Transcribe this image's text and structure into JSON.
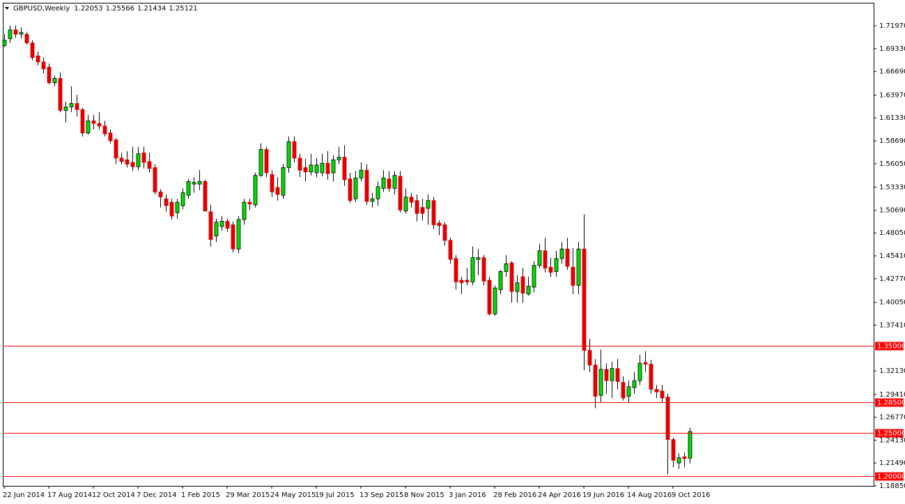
{
  "chart_data": {
    "type": "candlestick",
    "symbol": "GBPUSD,Weekly",
    "up_color": "#00dd00",
    "down_color": "#e00000",
    "wick_color": "#000000",
    "level_color": "#ff0000",
    "categories": [
      "22 Jun 2014",
      null,
      null,
      null,
      null,
      null,
      null,
      null,
      "17 Aug 2014",
      null,
      null,
      null,
      null,
      null,
      null,
      null,
      "12 Oct 2014",
      null,
      null,
      null,
      null,
      null,
      null,
      null,
      "7 Dec 2014",
      null,
      null,
      null,
      null,
      null,
      null,
      null,
      "1 Feb 2015",
      null,
      null,
      null,
      null,
      null,
      null,
      null,
      "29 Mar 2015",
      null,
      null,
      null,
      null,
      null,
      null,
      null,
      "24 May 2015",
      null,
      null,
      null,
      null,
      null,
      null,
      null,
      "19 Jul 2015",
      null,
      null,
      null,
      null,
      null,
      null,
      null,
      "13 Sep 2015",
      null,
      null,
      null,
      null,
      null,
      null,
      null,
      "8 Nov 2015",
      null,
      null,
      null,
      null,
      null,
      null,
      null,
      "3 Jan 2016",
      null,
      null,
      null,
      null,
      null,
      null,
      null,
      "28 Feb 2016",
      null,
      null,
      null,
      null,
      null,
      null,
      null,
      "24 Apr 2016",
      null,
      null,
      null,
      null,
      null,
      null,
      null,
      "19 Jun 2016",
      null,
      null,
      null,
      null,
      null,
      null,
      null,
      "14 Aug 2016",
      null,
      null,
      null,
      null,
      null,
      null,
      null,
      "9 Oct 2016",
      null,
      null,
      null
    ],
    "open": [
      1.697,
      1.705,
      1.715,
      1.71,
      1.71,
      1.7,
      1.685,
      1.678,
      1.672,
      1.654,
      1.659,
      1.622,
      1.626,
      1.63,
      1.623,
      1.596,
      1.61,
      1.607,
      1.604,
      1.596,
      1.588,
      1.567,
      1.565,
      1.562,
      1.557,
      1.573,
      1.563,
      1.556,
      1.528,
      1.52,
      1.516,
      1.504,
      1.512,
      1.524,
      1.537,
      1.537,
      1.54,
      1.505,
      1.477,
      1.488,
      1.494,
      1.49,
      1.462,
      1.496,
      1.516,
      1.513,
      1.547,
      1.577,
      1.548,
      1.533,
      1.524,
      1.556,
      1.586,
      1.567,
      1.556,
      1.551,
      1.55,
      1.55,
      1.561,
      1.55,
      1.565,
      1.568,
      1.543,
      1.52,
      1.544,
      1.553,
      1.517,
      1.52,
      1.532,
      1.543,
      1.532,
      1.546,
      1.506,
      1.522,
      1.518,
      1.51,
      1.509,
      1.518,
      1.492,
      1.49,
      1.472,
      1.451,
      1.426,
      1.426,
      1.424,
      1.45,
      1.452,
      1.426,
      1.387,
      1.415,
      1.436,
      1.446,
      1.413,
      1.43,
      1.41,
      1.418,
      1.443,
      1.46,
      1.441,
      1.436,
      1.451,
      1.462,
      1.441,
      1.42,
      1.462,
      1.345,
      1.328,
      1.293,
      1.323,
      1.31,
      1.324,
      1.308,
      1.292,
      1.302,
      1.31,
      1.331,
      1.329,
      1.3,
      1.298,
      1.291,
      1.242,
      1.215,
      1.222,
      1.22053
    ],
    "high": [
      1.71,
      1.72,
      1.72,
      1.718,
      1.712,
      1.703,
      1.69,
      1.683,
      1.676,
      1.662,
      1.666,
      1.632,
      1.65,
      1.64,
      1.625,
      1.617,
      1.617,
      1.62,
      1.61,
      1.6,
      1.59,
      1.573,
      1.575,
      1.58,
      1.58,
      1.58,
      1.573,
      1.56,
      1.531,
      1.525,
      1.52,
      1.52,
      1.532,
      1.543,
      1.545,
      1.553,
      1.542,
      1.513,
      1.497,
      1.5,
      1.497,
      1.494,
      1.5,
      1.52,
      1.52,
      1.55,
      1.584,
      1.58,
      1.553,
      1.545,
      1.56,
      1.592,
      1.592,
      1.572,
      1.566,
      1.572,
      1.567,
      1.572,
      1.575,
      1.57,
      1.58,
      1.582,
      1.55,
      1.552,
      1.562,
      1.56,
      1.527,
      1.54,
      1.553,
      1.552,
      1.552,
      1.552,
      1.532,
      1.527,
      1.525,
      1.52,
      1.525,
      1.522,
      1.495,
      1.493,
      1.475,
      1.455,
      1.43,
      1.44,
      1.465,
      1.462,
      1.455,
      1.43,
      1.42,
      1.438,
      1.455,
      1.448,
      1.432,
      1.44,
      1.43,
      1.448,
      1.468,
      1.475,
      1.452,
      1.46,
      1.47,
      1.475,
      1.463,
      1.47,
      1.502,
      1.358,
      1.335,
      1.346,
      1.33,
      1.332,
      1.335,
      1.315,
      1.31,
      1.32,
      1.34,
      1.344,
      1.334,
      1.305,
      1.305,
      1.295,
      1.244,
      1.226,
      1.227,
      1.25566
    ],
    "low": [
      1.695,
      1.7,
      1.706,
      1.705,
      1.698,
      1.68,
      1.674,
      1.665,
      1.652,
      1.65,
      1.62,
      1.608,
      1.62,
      1.615,
      1.592,
      1.594,
      1.6,
      1.6,
      1.592,
      1.584,
      1.56,
      1.56,
      1.556,
      1.552,
      1.553,
      1.555,
      1.55,
      1.525,
      1.51,
      1.505,
      1.496,
      1.497,
      1.508,
      1.52,
      1.527,
      1.53,
      1.505,
      1.465,
      1.47,
      1.483,
      1.482,
      1.458,
      1.457,
      1.49,
      1.507,
      1.51,
      1.545,
      1.545,
      1.522,
      1.518,
      1.52,
      1.55,
      1.562,
      1.545,
      1.54,
      1.547,
      1.545,
      1.546,
      1.542,
      1.54,
      1.56,
      1.535,
      1.515,
      1.516,
      1.54,
      1.513,
      1.51,
      1.512,
      1.528,
      1.528,
      1.525,
      1.504,
      1.503,
      1.51,
      1.494,
      1.495,
      1.49,
      1.485,
      1.478,
      1.466,
      1.445,
      1.415,
      1.41,
      1.42,
      1.42,
      1.432,
      1.42,
      1.385,
      1.385,
      1.41,
      1.43,
      1.4,
      1.4,
      1.4,
      1.408,
      1.412,
      1.44,
      1.435,
      1.43,
      1.43,
      1.445,
      1.438,
      1.41,
      1.41,
      1.322,
      1.32,
      1.278,
      1.285,
      1.295,
      1.29,
      1.3,
      1.287,
      1.285,
      1.295,
      1.305,
      1.32,
      1.295,
      1.29,
      1.285,
      1.202,
      1.21,
      1.208,
      1.21,
      1.21434
    ],
    "close": [
      1.703,
      1.715,
      1.71,
      1.712,
      1.7,
      1.683,
      1.678,
      1.67,
      1.654,
      1.659,
      1.622,
      1.626,
      1.63,
      1.623,
      1.596,
      1.61,
      1.607,
      1.604,
      1.595,
      1.587,
      1.567,
      1.563,
      1.56,
      1.557,
      1.572,
      1.562,
      1.555,
      1.528,
      1.522,
      1.512,
      1.5,
      1.516,
      1.527,
      1.54,
      1.539,
      1.54,
      1.506,
      1.473,
      1.493,
      1.494,
      1.486,
      1.462,
      1.496,
      1.516,
      1.514,
      1.547,
      1.577,
      1.55,
      1.528,
      1.525,
      1.556,
      1.586,
      1.567,
      1.553,
      1.551,
      1.559,
      1.559,
      1.561,
      1.549,
      1.565,
      1.568,
      1.542,
      1.518,
      1.544,
      1.553,
      1.517,
      1.52,
      1.534,
      1.544,
      1.532,
      1.547,
      1.507,
      1.522,
      1.516,
      1.503,
      1.503,
      1.518,
      1.49,
      1.489,
      1.472,
      1.45,
      1.424,
      1.423,
      1.424,
      1.452,
      1.452,
      1.425,
      1.387,
      1.417,
      1.436,
      1.445,
      1.413,
      1.423,
      1.411,
      1.419,
      1.443,
      1.46,
      1.44,
      1.435,
      1.451,
      1.462,
      1.442,
      1.42,
      1.462,
      1.345,
      1.328,
      1.292,
      1.323,
      1.31,
      1.324,
      1.309,
      1.29,
      1.303,
      1.31,
      1.33,
      1.329,
      1.3,
      1.297,
      1.29,
      1.242,
      1.218,
      1.221,
      1.22,
      1.25121
    ],
    "ylim": [
      1.1885,
      1.7455
    ],
    "yticks": [
      {
        "value": 1.7197,
        "label": "1.71970"
      },
      {
        "value": 1.6933,
        "label": "1.69330"
      },
      {
        "value": 1.6669,
        "label": "1.66690"
      },
      {
        "value": 1.6397,
        "label": "1.63970"
      },
      {
        "value": 1.6133,
        "label": "1.61330"
      },
      {
        "value": 1.5869,
        "label": "1.58690"
      },
      {
        "value": 1.5605,
        "label": "1.56050"
      },
      {
        "value": 1.5333,
        "label": "1.53330"
      },
      {
        "value": 1.5069,
        "label": "1.50690"
      },
      {
        "value": 1.4805,
        "label": "1.48050"
      },
      {
        "value": 1.4541,
        "label": "1.45410"
      },
      {
        "value": 1.4277,
        "label": "1.42770"
      },
      {
        "value": 1.4005,
        "label": "1.40050"
      },
      {
        "value": 1.3741,
        "label": "1.37410"
      },
      {
        "value": 1.3213,
        "label": "1.32130"
      },
      {
        "value": 1.2941,
        "label": "1.29410"
      },
      {
        "value": 1.2677,
        "label": "1.26770"
      },
      {
        "value": 1.2413,
        "label": "1.24130"
      },
      {
        "value": 1.2149,
        "label": "1.21490"
      },
      {
        "value": 1.1885,
        "label": "1.18850"
      }
    ],
    "levels": [
      {
        "value": 1.35,
        "label": "1.35000"
      },
      {
        "value": 1.285,
        "label": "1.28500"
      },
      {
        "value": 1.25,
        "label": "1.25000"
      },
      {
        "value": 1.2,
        "label": "1.20000"
      }
    ]
  }
}
